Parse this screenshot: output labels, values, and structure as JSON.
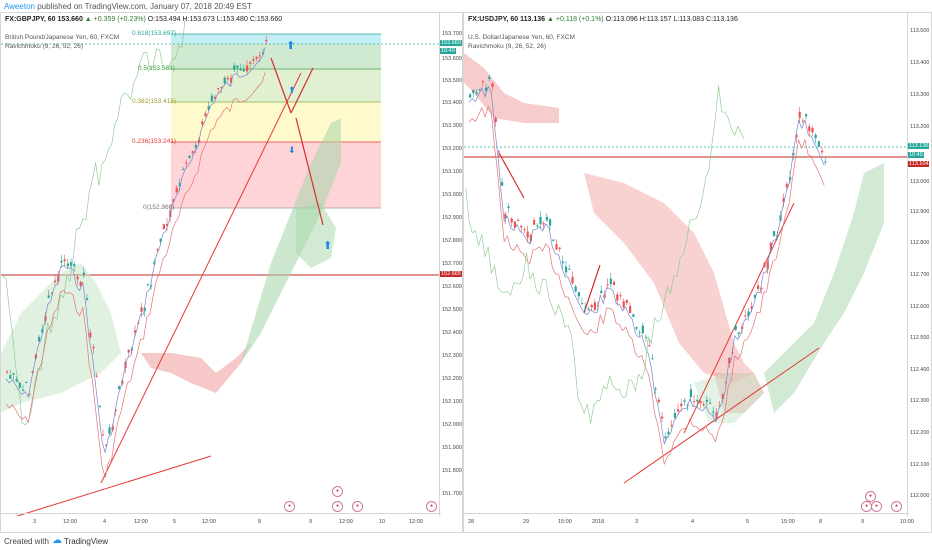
{
  "header": {
    "author": "Aweeton",
    "published": "published on TradingView.com, January 07, 2018 20:49 EST"
  },
  "left": {
    "symbol": "FX:GBPJPY, 60",
    "price": "153.660",
    "change": "▲ +0.359 (+0.23%)",
    "o": "O:153.494",
    "h": "H:153.673",
    "l": "L:153.480",
    "c": "C:153.660",
    "name": "British Pound/Japanese Yen, 60, FXCM",
    "indicator": "Ravichmoku (9, 26, 52, 26)",
    "fib": [
      "0.618(153.697)",
      "0.5(153.558)",
      "0.382(153.415)",
      "0.236(153.241)",
      "0(152.960)"
    ],
    "yticks": [
      "153.700",
      "153.600",
      "153.500",
      "153.400",
      "153.300",
      "153.200",
      "153.100",
      "153.000",
      "152.900",
      "152.800",
      "152.700",
      "152.600",
      "152.500",
      "152.400",
      "152.300",
      "152.200",
      "152.100",
      "152.000",
      "151.900",
      "151.800",
      "151.700"
    ],
    "xticks": [
      "3",
      "12:00",
      "4",
      "12:00",
      "5",
      "12:00",
      "8",
      "9",
      "12:00",
      "10",
      "12:00"
    ],
    "price_tags": [
      "153.660",
      "10:40",
      "152.665"
    ]
  },
  "right": {
    "symbol": "FX:USDJPY, 60",
    "price": "113.136",
    "change": "▲ +0.118 (+0.1%)",
    "o": "O:113.096",
    "h": "H:113.157",
    "l": "L:113.083",
    "c": "C:113.136",
    "name": "U.S. Dollar/Japanese Yen, 60, FXCM",
    "indicator": "Ravichmoku (9, 26, 52, 26)",
    "yticks": [
      "113.500",
      "113.400",
      "113.300",
      "113.200",
      "113.100",
      "113.000",
      "112.900",
      "112.800",
      "112.700",
      "112.600",
      "112.500",
      "112.400",
      "112.300",
      "112.200",
      "112.100",
      "112.000"
    ],
    "xticks": [
      "28",
      "29",
      "15:00",
      "2018",
      "3",
      "4",
      "5",
      "15:00",
      "8",
      "9",
      "10:00"
    ],
    "price_tags": [
      "113.136",
      "10:40",
      "113.104"
    ]
  },
  "footer": {
    "created_with": "Created with",
    "brand": "TradingView"
  },
  "colors": {
    "up": "#26a69a",
    "down": "#ef5350",
    "kumo_green": "#a5d6a7",
    "kumo_red": "#ef9a9a",
    "hline": "#c62828",
    "arrow": "#d32f2f",
    "blue_arrow": "#1e88e5"
  }
}
